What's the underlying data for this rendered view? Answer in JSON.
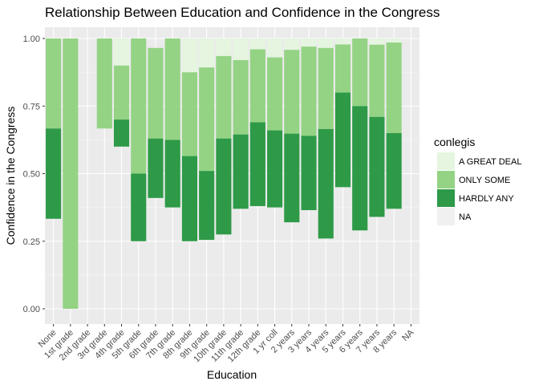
{
  "chart_data": {
    "type": "bar",
    "title": "Relationship Between Education and Confidence in the Congress",
    "xlabel": "Education",
    "ylabel": "Confidence in the Congress",
    "ylim": [
      0,
      1
    ],
    "yticks": [
      "0.00",
      "0.25",
      "0.50",
      "0.75",
      "1.00"
    ],
    "grid": true,
    "legend": {
      "title": "conlegis",
      "position": "right",
      "entries": [
        {
          "label": "A GREAT DEAL",
          "color": "#e5f5e0"
        },
        {
          "label": "ONLY SOME",
          "color": "#94d384"
        },
        {
          "label": "HARDLY ANY",
          "color": "#2e9a47"
        },
        {
          "label": "NA",
          "color": "#f0f0f0"
        }
      ]
    },
    "categories": [
      "None",
      "1st grade",
      "2nd grade",
      "3rd grade",
      "4th grade",
      "5th grade",
      "6th grade",
      "7th grade",
      "8th grade",
      "9th grade",
      "10th grade",
      "11th grade",
      "12th grade",
      "1 yr coll",
      "2 years",
      "3 years",
      "4 years",
      "5 years",
      "6 years",
      "7 years",
      "8 years",
      "NA"
    ],
    "series": [
      {
        "name": "A GREAT DEAL",
        "color": "#e5f5e0",
        "lower": [
          null,
          null,
          null,
          null,
          0.9,
          null,
          null,
          null,
          0.875,
          0.893,
          0.935,
          0.92,
          0.96,
          0.93,
          0.958,
          0.97,
          0.965,
          0.978,
          null,
          0.977,
          0.985,
          null
        ],
        "upper": [
          null,
          null,
          null,
          null,
          1.0,
          null,
          null,
          null,
          1.0,
          1.0,
          1.0,
          1.0,
          1.0,
          1.0,
          1.0,
          1.0,
          1.0,
          1.0,
          null,
          1.0,
          1.0,
          null
        ]
      },
      {
        "name": "ONLY SOME",
        "color": "#94d384",
        "lower": [
          0.667,
          0.0,
          null,
          0.667,
          0.7,
          0.5,
          0.63,
          0.625,
          0.565,
          0.51,
          0.63,
          0.645,
          0.69,
          0.66,
          0.648,
          0.64,
          0.665,
          0.8,
          0.75,
          0.71,
          0.65,
          null
        ],
        "upper": [
          1.0,
          1.0,
          null,
          1.0,
          0.9,
          1.0,
          0.965,
          1.0,
          0.875,
          0.893,
          0.935,
          0.92,
          0.96,
          0.93,
          0.958,
          0.97,
          0.965,
          0.978,
          1.0,
          0.977,
          0.985,
          null
        ]
      },
      {
        "name": "HARDLY ANY",
        "color": "#2e9a47",
        "lower": [
          0.333,
          null,
          null,
          null,
          0.6,
          0.25,
          0.41,
          0.375,
          0.25,
          0.255,
          0.275,
          0.37,
          0.38,
          0.375,
          0.32,
          0.365,
          0.26,
          0.45,
          0.29,
          0.34,
          0.37,
          null
        ],
        "upper": [
          0.667,
          null,
          null,
          null,
          0.7,
          0.5,
          0.63,
          0.625,
          0.565,
          0.51,
          0.63,
          0.645,
          0.69,
          0.66,
          0.648,
          0.64,
          0.665,
          0.8,
          0.75,
          0.71,
          0.65,
          null
        ]
      }
    ]
  }
}
